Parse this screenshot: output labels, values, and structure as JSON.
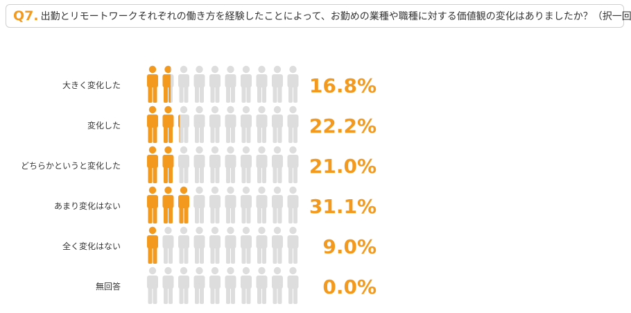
{
  "question": {
    "number": "Q7.",
    "text": "出勤とリモートワークそれぞれの働き方を経験したことによって、お勤めの業種や職種に対する価値観の変化はありましたか？（択一回答）"
  },
  "colors": {
    "accent": "#f39a1e",
    "figure_inactive": "#dddddd",
    "text": "#333333",
    "border": "#cfcfcf"
  },
  "chart_data": {
    "type": "pictograph",
    "icon": "person-icon",
    "icons_per_row": 10,
    "unit_percent_per_icon": 10,
    "categories": [
      "大きく変化した",
      "変化した",
      "どちらかというと変化した",
      "あまり変化はない",
      "全く変化はない",
      "無回答"
    ],
    "values": [
      16.8,
      22.2,
      21.0,
      31.1,
      9.0,
      0.0
    ],
    "value_labels": [
      "16.8%",
      "22.2%",
      "21.0%",
      "31.1%",
      "9.0%",
      "0.0%"
    ]
  }
}
